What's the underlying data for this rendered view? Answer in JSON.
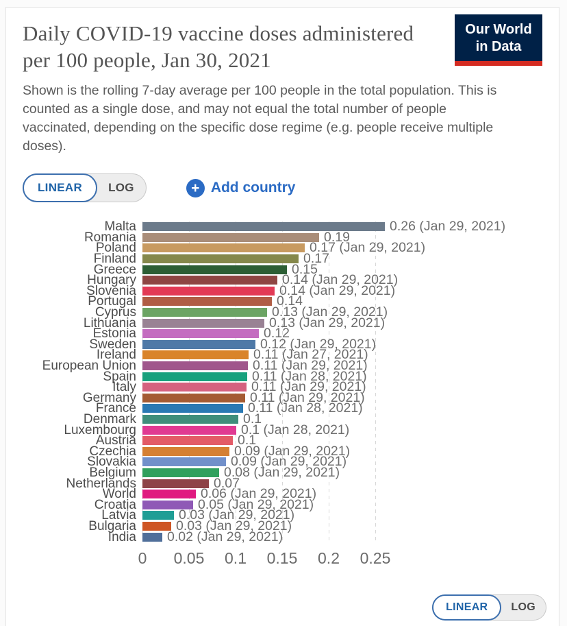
{
  "header": {
    "title": "Daily COVID-19 vaccine doses administered per 100 people, Jan 30, 2021",
    "subtitle": "Shown is the rolling 7-day average per 100 people in the total population. This is counted as a single dose, and may not equal the total number of people vaccinated, depending on the specific dose regime (e.g. people receive multiple doses).",
    "logo": {
      "line1": "Our World",
      "line2": "in Data",
      "bg_color": "#002147",
      "stripe_color": "#d42b21"
    }
  },
  "controls": {
    "linear_label": "LINEAR",
    "log_label": "LOG",
    "active_scale": "LINEAR",
    "add_country_label": "Add country",
    "accent_blue": "#2b6bc4"
  },
  "chart_data": {
    "type": "bar",
    "orientation": "horizontal",
    "title": "Daily COVID-19 vaccine doses administered per 100 people, Jan 30, 2021",
    "xlabel": "",
    "ylabel": "",
    "xlim": [
      0,
      0.27
    ],
    "grid": "dashed-vertical",
    "x_tick_labels": [
      "0",
      "0.05",
      "0.1",
      "0.15",
      "0.2",
      "0.25"
    ],
    "x_tick_values": [
      0,
      0.05,
      0.1,
      0.15,
      0.2,
      0.25
    ],
    "bars": [
      {
        "country": "Malta",
        "value": 0.26,
        "plot_value": 0.26,
        "label": "0.26 (Jan 29, 2021)",
        "color": "#6c7b8b"
      },
      {
        "country": "Romania",
        "value": 0.19,
        "plot_value": 0.19,
        "label": "0.19",
        "color": "#a98d79"
      },
      {
        "country": "Poland",
        "value": 0.17,
        "plot_value": 0.174,
        "label": "0.17 (Jan 29, 2021)",
        "color": "#c89a60"
      },
      {
        "country": "Finland",
        "value": 0.17,
        "plot_value": 0.168,
        "label": "0.17",
        "color": "#85884b"
      },
      {
        "country": "Greece",
        "value": 0.15,
        "plot_value": 0.155,
        "label": "0.15",
        "color": "#2c5e34"
      },
      {
        "country": "Hungary",
        "value": 0.14,
        "plot_value": 0.1445,
        "label": "0.14 (Jan 29, 2021)",
        "color": "#8e4643"
      },
      {
        "country": "Slovenia",
        "value": 0.14,
        "plot_value": 0.142,
        "label": "0.14 (Jan 29, 2021)",
        "color": "#e23a55"
      },
      {
        "country": "Portugal",
        "value": 0.14,
        "plot_value": 0.139,
        "label": "0.14",
        "color": "#b05d45"
      },
      {
        "country": "Cyprus",
        "value": 0.13,
        "plot_value": 0.134,
        "label": "0.13 (Jan 29, 2021)",
        "color": "#6ca464"
      },
      {
        "country": "Lithuania",
        "value": 0.13,
        "plot_value": 0.131,
        "label": "0.13 (Jan 29, 2021)",
        "color": "#998294"
      },
      {
        "country": "Estonia",
        "value": 0.12,
        "plot_value": 0.125,
        "label": "0.12",
        "color": "#c46cc0"
      },
      {
        "country": "Sweden",
        "value": 0.12,
        "plot_value": 0.121,
        "label": "0.12 (Jan 29, 2021)",
        "color": "#4e79a7"
      },
      {
        "country": "Ireland",
        "value": 0.11,
        "plot_value": 0.114,
        "label": "0.11 (Jan 27, 2021)",
        "color": "#d9842a"
      },
      {
        "country": "European Union",
        "value": 0.11,
        "plot_value": 0.113,
        "label": "0.11 (Jan 29, 2021)",
        "color": "#a0568c"
      },
      {
        "country": "Spain",
        "value": 0.11,
        "plot_value": 0.1125,
        "label": "0.11 (Jan 28, 2021)",
        "color": "#18a17d"
      },
      {
        "country": "Italy",
        "value": 0.11,
        "plot_value": 0.1115,
        "label": "0.11 (Jan 29, 2021)",
        "color": "#d5617f"
      },
      {
        "country": "Germany",
        "value": 0.11,
        "plot_value": 0.11,
        "label": "0.11 (Jan 29, 2021)",
        "color": "#a45b33"
      },
      {
        "country": "France",
        "value": 0.11,
        "plot_value": 0.108,
        "label": "0.11 (Jan 28, 2021)",
        "color": "#2a79b3"
      },
      {
        "country": "Denmark",
        "value": 0.1,
        "plot_value": 0.103,
        "label": "0.1",
        "color": "#3f8e7b"
      },
      {
        "country": "Luxembourg",
        "value": 0.1,
        "plot_value": 0.101,
        "label": "0.1 (Jan 28, 2021)",
        "color": "#e03a92"
      },
      {
        "country": "Austria",
        "value": 0.1,
        "plot_value": 0.097,
        "label": "0.1",
        "color": "#e35b67"
      },
      {
        "country": "Czechia",
        "value": 0.09,
        "plot_value": 0.0935,
        "label": "0.09 (Jan 29, 2021)",
        "color": "#d58033"
      },
      {
        "country": "Slovakia",
        "value": 0.09,
        "plot_value": 0.09,
        "label": "0.09 (Jan 29, 2021)",
        "color": "#7190ca"
      },
      {
        "country": "Belgium",
        "value": 0.08,
        "plot_value": 0.082,
        "label": "0.08 (Jan 29, 2021)",
        "color": "#30a05d"
      },
      {
        "country": "Netherlands",
        "value": 0.07,
        "plot_value": 0.0715,
        "label": "0.07",
        "color": "#8e4347"
      },
      {
        "country": "World",
        "value": 0.06,
        "plot_value": 0.057,
        "label": "0.06 (Jan 29, 2021)",
        "color": "#e01a80"
      },
      {
        "country": "Croatia",
        "value": 0.05,
        "plot_value": 0.0545,
        "label": "0.05 (Jan 29, 2021)",
        "color": "#8f59b6"
      },
      {
        "country": "Latvia",
        "value": 0.03,
        "plot_value": 0.0335,
        "label": "0.03 (Jan 29, 2021)",
        "color": "#1f9e95"
      },
      {
        "country": "Bulgaria",
        "value": 0.03,
        "plot_value": 0.031,
        "label": "0.03 (Jan 29, 2021)",
        "color": "#ce5524"
      },
      {
        "country": "India",
        "value": 0.02,
        "plot_value": 0.021,
        "label": "0.02 (Jan 29, 2021)",
        "color": "#506f9a"
      }
    ]
  },
  "footer": {
    "linear_label": "LINEAR",
    "log_label": "LOG",
    "active_scale": "LINEAR"
  }
}
